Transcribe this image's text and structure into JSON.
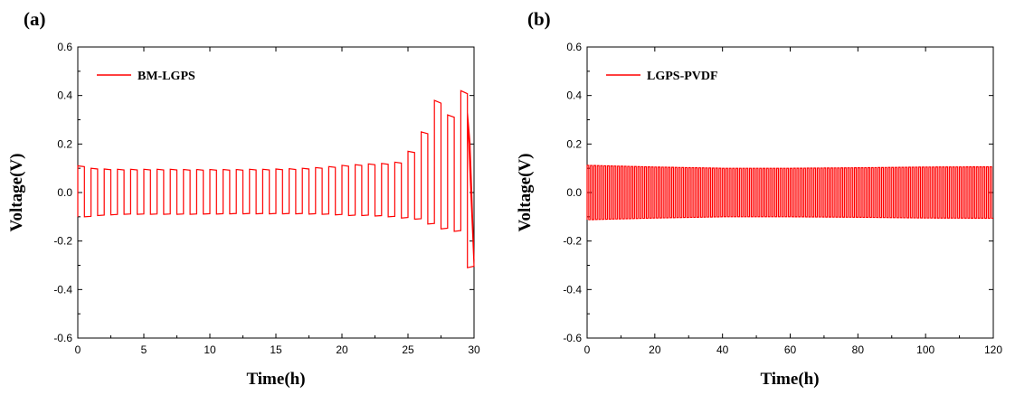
{
  "chart_data": [
    {
      "type": "line",
      "panel_label": "(a)",
      "title": "",
      "xlabel": "Time(h)",
      "ylabel": "Voltage(V)",
      "xlim": [
        0,
        30
      ],
      "ylim": [
        -0.6,
        0.6
      ],
      "xticks": [
        0,
        5,
        10,
        15,
        20,
        25,
        30
      ],
      "yticks": [
        -0.6,
        -0.4,
        -0.2,
        0.0,
        0.2,
        0.4,
        0.6
      ],
      "xtick_labels": [
        "0",
        "5",
        "10",
        "15",
        "20",
        "25",
        "30"
      ],
      "ytick_labels": [
        "-0.6",
        "-0.4",
        "-0.2",
        "0.0",
        "0.2",
        "0.4",
        "0.6"
      ],
      "legend_position": "top-left",
      "series": [
        {
          "name": "BM-LGPS",
          "color": "#ff0000",
          "cycle_period_h": 1.0,
          "cycles": [
            {
              "t": 0,
              "pos": 0.11,
              "neg": -0.1
            },
            {
              "t": 1,
              "pos": 0.1,
              "neg": -0.095
            },
            {
              "t": 2,
              "pos": 0.097,
              "neg": -0.092
            },
            {
              "t": 3,
              "pos": 0.096,
              "neg": -0.09
            },
            {
              "t": 4,
              "pos": 0.096,
              "neg": -0.09
            },
            {
              "t": 5,
              "pos": 0.096,
              "neg": -0.09
            },
            {
              "t": 6,
              "pos": 0.096,
              "neg": -0.09
            },
            {
              "t": 7,
              "pos": 0.096,
              "neg": -0.09
            },
            {
              "t": 8,
              "pos": 0.095,
              "neg": -0.09
            },
            {
              "t": 9,
              "pos": 0.095,
              "neg": -0.089
            },
            {
              "t": 10,
              "pos": 0.095,
              "neg": -0.089
            },
            {
              "t": 11,
              "pos": 0.095,
              "neg": -0.088
            },
            {
              "t": 12,
              "pos": 0.095,
              "neg": -0.088
            },
            {
              "t": 13,
              "pos": 0.096,
              "neg": -0.088
            },
            {
              "t": 14,
              "pos": 0.096,
              "neg": -0.088
            },
            {
              "t": 15,
              "pos": 0.097,
              "neg": -0.088
            },
            {
              "t": 16,
              "pos": 0.098,
              "neg": -0.088
            },
            {
              "t": 17,
              "pos": 0.1,
              "neg": -0.089
            },
            {
              "t": 18,
              "pos": 0.103,
              "neg": -0.09
            },
            {
              "t": 19,
              "pos": 0.107,
              "neg": -0.092
            },
            {
              "t": 20,
              "pos": 0.112,
              "neg": -0.095
            },
            {
              "t": 21,
              "pos": 0.115,
              "neg": -0.095
            },
            {
              "t": 22,
              "pos": 0.118,
              "neg": -0.097
            },
            {
              "t": 23,
              "pos": 0.12,
              "neg": -0.1
            },
            {
              "t": 24,
              "pos": 0.125,
              "neg": -0.105
            },
            {
              "t": 25,
              "pos": 0.17,
              "neg": -0.11
            },
            {
              "t": 26,
              "pos": 0.25,
              "neg": -0.13
            },
            {
              "t": 27,
              "pos": 0.38,
              "neg": -0.15
            },
            {
              "t": 28,
              "pos": 0.32,
              "neg": -0.16
            },
            {
              "t": 29,
              "pos": 0.42,
              "neg": -0.31
            }
          ],
          "end_points": [
            {
              "x": 29.5,
              "y": 0.33
            },
            {
              "x": 29.7,
              "y": 0.2
            },
            {
              "x": 30.0,
              "y": -0.28
            }
          ]
        }
      ]
    },
    {
      "type": "line",
      "panel_label": "(b)",
      "title": "",
      "xlabel": "Time(h)",
      "ylabel": "Voltage(V)",
      "xlim": [
        0,
        120
      ],
      "ylim": [
        -0.6,
        0.6
      ],
      "xticks": [
        0,
        20,
        40,
        60,
        80,
        100,
        120
      ],
      "yticks": [
        -0.6,
        -0.4,
        -0.2,
        0.0,
        0.2,
        0.4,
        0.6
      ],
      "xtick_labels": [
        "0",
        "20",
        "40",
        "60",
        "80",
        "100",
        "120"
      ],
      "ytick_labels": [
        "-0.6",
        "-0.4",
        "-0.2",
        "0.0",
        "0.2",
        "0.4",
        "0.6"
      ],
      "legend_position": "top-left",
      "series": [
        {
          "name": "LGPS-PVDF",
          "color": "#ff0000",
          "cycle_period_h": 1.0,
          "envelope_pos": [
            [
              0,
              0.112
            ],
            [
              20,
              0.105
            ],
            [
              40,
              0.1
            ],
            [
              60,
              0.1
            ],
            [
              80,
              0.102
            ],
            [
              100,
              0.105
            ],
            [
              120,
              0.106
            ]
          ],
          "envelope_neg": [
            [
              0,
              -0.112
            ],
            [
              20,
              -0.105
            ],
            [
              40,
              -0.1
            ],
            [
              60,
              -0.1
            ],
            [
              80,
              -0.102
            ],
            [
              100,
              -0.105
            ],
            [
              120,
              -0.106
            ]
          ]
        }
      ]
    }
  ]
}
